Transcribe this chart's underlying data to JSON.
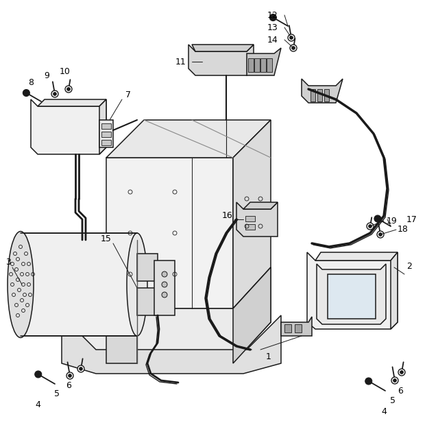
{
  "bg_color": "#ffffff",
  "line_color": "#1a1a1a",
  "label_color": "#000000",
  "fig_width": 6.39,
  "fig_height": 6.36,
  "lw": 1.1
}
